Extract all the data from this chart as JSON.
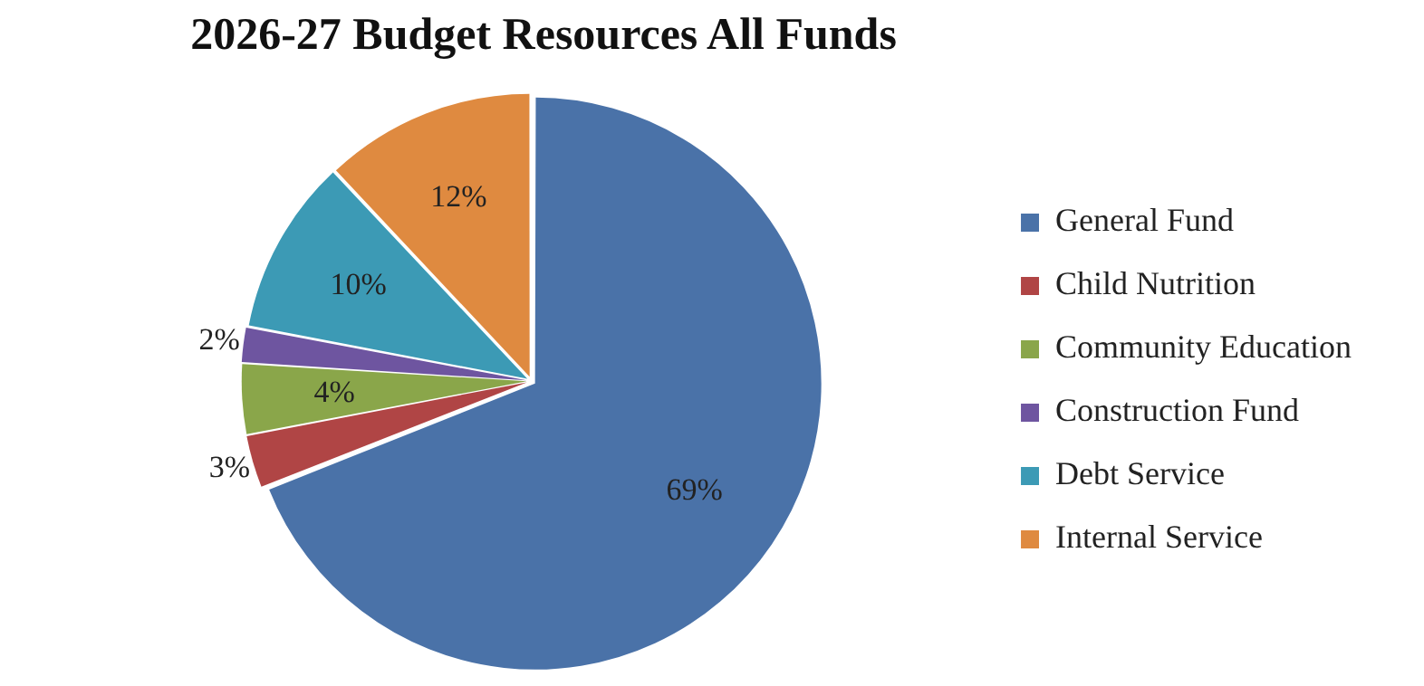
{
  "chart_data": {
    "type": "pie",
    "title": "2026-27 Budget Resources All Funds",
    "categories": [
      "General Fund",
      "Child Nutrition",
      "Community Education",
      "Construction Fund",
      "Debt Service",
      "Internal Service"
    ],
    "values": [
      69,
      3,
      4,
      2,
      10,
      12
    ],
    "colors": [
      "#4a72a8",
      "#b04545",
      "#8aa64a",
      "#6e55a0",
      "#3c9ab5",
      "#df8a40"
    ],
    "value_labels": [
      "69%",
      "3%",
      "4%",
      "2%",
      "10%",
      "12%"
    ],
    "legend": "right"
  }
}
